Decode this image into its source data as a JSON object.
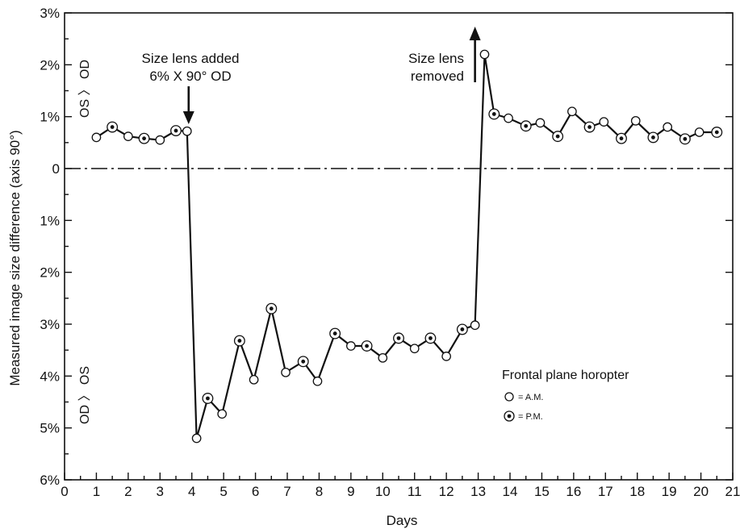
{
  "chart_data": {
    "type": "line",
    "xlabel": "Days",
    "ylabel": "Measured image size difference (axis 90°)",
    "x_ticks": [
      0,
      1,
      2,
      3,
      4,
      5,
      6,
      7,
      8,
      9,
      10,
      11,
      12,
      13,
      14,
      15,
      16,
      17,
      18,
      19,
      20,
      21
    ],
    "y_ticks": [
      {
        "value": 3,
        "label": "3%"
      },
      {
        "value": 2,
        "label": "2%"
      },
      {
        "value": 1,
        "label": "1%"
      },
      {
        "value": 0,
        "label": "0"
      },
      {
        "value": -1,
        "label": "1%"
      },
      {
        "value": -2,
        "label": "2%"
      },
      {
        "value": -3,
        "label": "3%"
      },
      {
        "value": -4,
        "label": "4%"
      },
      {
        "value": -5,
        "label": "5%"
      },
      {
        "value": -6,
        "label": "6%"
      }
    ],
    "xlim": [
      0,
      21
    ],
    "ylim": [
      -6,
      3
    ],
    "side_labels": {
      "upper": "OS 〉 OD",
      "lower": "OD 〉 OS"
    },
    "annotations": {
      "added": {
        "lines": [
          "Size lens added",
          "6% X 90° OD"
        ],
        "x": 3.9
      },
      "removed": {
        "lines": [
          "Size lens",
          "removed"
        ],
        "x": 12.9
      }
    },
    "legend": {
      "title": "Frontal plane horopter",
      "position": "lower-right",
      "items": [
        {
          "marker": "open-circle",
          "label": "= A.M."
        },
        {
          "marker": "dot-circle",
          "label": "= P.M."
        }
      ]
    },
    "series": [
      {
        "points": [
          {
            "x": 1.0,
            "y": 0.6,
            "session": "am"
          },
          {
            "x": 1.5,
            "y": 0.8,
            "session": "pm"
          },
          {
            "x": 2.0,
            "y": 0.62,
            "session": "am"
          },
          {
            "x": 2.5,
            "y": 0.58,
            "session": "pm"
          },
          {
            "x": 3.0,
            "y": 0.55,
            "session": "am"
          },
          {
            "x": 3.5,
            "y": 0.73,
            "session": "pm"
          },
          {
            "x": 3.85,
            "y": 0.72,
            "session": "am"
          },
          {
            "x": 4.15,
            "y": -5.2,
            "session": "am"
          },
          {
            "x": 4.5,
            "y": -4.43,
            "session": "pm"
          },
          {
            "x": 4.95,
            "y": -4.73,
            "session": "am"
          },
          {
            "x": 5.5,
            "y": -3.32,
            "session": "pm"
          },
          {
            "x": 5.95,
            "y": -4.07,
            "session": "am"
          },
          {
            "x": 6.5,
            "y": -2.7,
            "session": "pm"
          },
          {
            "x": 6.95,
            "y": -3.93,
            "session": "am"
          },
          {
            "x": 7.5,
            "y": -3.72,
            "session": "pm"
          },
          {
            "x": 7.95,
            "y": -4.1,
            "session": "am"
          },
          {
            "x": 8.5,
            "y": -3.18,
            "session": "pm"
          },
          {
            "x": 9.0,
            "y": -3.42,
            "session": "am"
          },
          {
            "x": 9.5,
            "y": -3.42,
            "session": "pm"
          },
          {
            "x": 10.0,
            "y": -3.65,
            "session": "am"
          },
          {
            "x": 10.5,
            "y": -3.27,
            "session": "pm"
          },
          {
            "x": 11.0,
            "y": -3.47,
            "session": "am"
          },
          {
            "x": 11.5,
            "y": -3.27,
            "session": "pm"
          },
          {
            "x": 12.0,
            "y": -3.62,
            "session": "am"
          },
          {
            "x": 12.5,
            "y": -3.1,
            "session": "pm"
          },
          {
            "x": 12.9,
            "y": -3.02,
            "session": "am"
          },
          {
            "x": 13.2,
            "y": 2.2,
            "session": "am"
          },
          {
            "x": 13.5,
            "y": 1.05,
            "session": "pm"
          },
          {
            "x": 13.95,
            "y": 0.97,
            "session": "am"
          },
          {
            "x": 14.5,
            "y": 0.82,
            "session": "pm"
          },
          {
            "x": 14.95,
            "y": 0.88,
            "session": "am"
          },
          {
            "x": 15.5,
            "y": 0.62,
            "session": "pm"
          },
          {
            "x": 15.95,
            "y": 1.1,
            "session": "am"
          },
          {
            "x": 16.5,
            "y": 0.8,
            "session": "pm"
          },
          {
            "x": 16.95,
            "y": 0.9,
            "session": "am"
          },
          {
            "x": 17.5,
            "y": 0.58,
            "session": "pm"
          },
          {
            "x": 17.95,
            "y": 0.92,
            "session": "am"
          },
          {
            "x": 18.5,
            "y": 0.6,
            "session": "pm"
          },
          {
            "x": 18.95,
            "y": 0.8,
            "session": "am"
          },
          {
            "x": 19.5,
            "y": 0.57,
            "session": "pm"
          },
          {
            "x": 19.95,
            "y": 0.7,
            "session": "am"
          },
          {
            "x": 20.5,
            "y": 0.7,
            "session": "pm"
          }
        ]
      }
    ]
  }
}
